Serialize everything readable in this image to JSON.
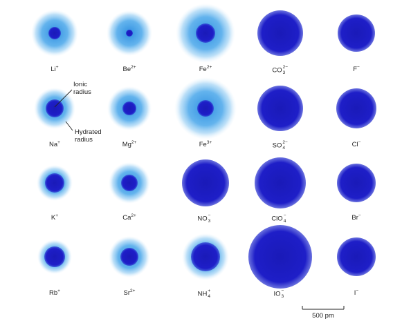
{
  "ions": [
    {
      "label": "Li",
      "sup": "+",
      "sub": ""
    },
    {
      "label": "Be",
      "sup": "2+",
      "sub": ""
    },
    {
      "label": "Fe",
      "sup": "2+",
      "sub": ""
    },
    {
      "label": "CO",
      "sup": "2−",
      "sub": "3"
    },
    {
      "label": "F",
      "sup": "−",
      "sub": ""
    },
    {
      "label": "Na",
      "sup": "+",
      "sub": ""
    },
    {
      "label": "Mg",
      "sup": "2+",
      "sub": ""
    },
    {
      "label": "Fe",
      "sup": "3+",
      "sub": ""
    },
    {
      "label": "SO",
      "sup": "2−",
      "sub": "4"
    },
    {
      "label": "Cl",
      "sup": "−",
      "sub": ""
    },
    {
      "label": "K",
      "sup": "+",
      "sub": ""
    },
    {
      "label": "Ca",
      "sup": "2+",
      "sub": ""
    },
    {
      "label": "NO",
      "sup": "−",
      "sub": "3"
    },
    {
      "label": "ClO",
      "sup": "−",
      "sub": "4"
    },
    {
      "label": "Br",
      "sup": "−",
      "sub": ""
    },
    {
      "label": "Rb",
      "sup": "+",
      "sub": ""
    },
    {
      "label": "Sr",
      "sup": "2+",
      "sub": ""
    },
    {
      "label": "NH",
      "sup": "+",
      "sub": "4"
    },
    {
      "label": "IO",
      "sup": "−",
      "sub": "3"
    },
    {
      "label": "I",
      "sup": "−",
      "sub": ""
    }
  ],
  "callouts": {
    "ionic_radius": "Ionic radius",
    "hydrated_radius": "Hydrated radius"
  },
  "scale_bar": {
    "label": "500 pm",
    "length_pm": 500
  },
  "colors": {
    "core": "#1e1ec8",
    "hydration": "#2f8fe0"
  }
}
